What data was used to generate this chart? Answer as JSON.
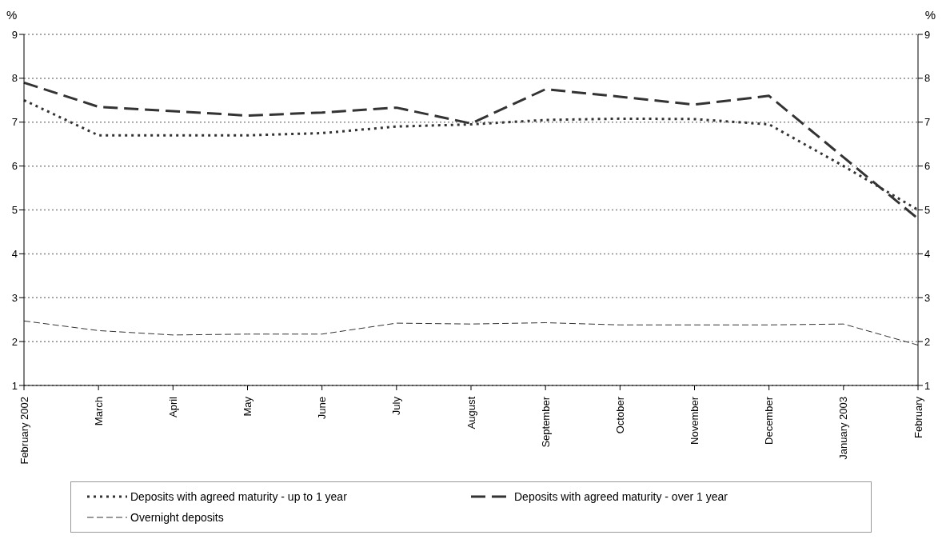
{
  "chart_data": {
    "type": "line",
    "ylabel": "%",
    "y2label": "%",
    "categories": [
      "February 2002",
      "March",
      "April",
      "May",
      "June",
      "July",
      "August",
      "September",
      "October",
      "November",
      "December",
      "January 2003",
      "February"
    ],
    "series": [
      {
        "name": "Deposits with agreed maturity - up to 1 year",
        "color": "#333333",
        "line_style": "dotted",
        "values": [
          7.5,
          6.7,
          6.7,
          6.7,
          6.75,
          6.9,
          6.95,
          7.05,
          7.08,
          7.07,
          6.95,
          6.0,
          5.0
        ]
      },
      {
        "name": "Deposits with agreed maturity - over 1 year",
        "color": "#333333",
        "line_style": "dashed",
        "values": [
          7.9,
          7.35,
          7.25,
          7.15,
          7.22,
          7.33,
          6.97,
          7.75,
          7.58,
          7.4,
          7.6,
          6.2,
          4.8
        ]
      },
      {
        "name": "Overnight deposits",
        "color": "#333333",
        "line_style": "dashed",
        "values": [
          2.47,
          2.25,
          2.15,
          2.17,
          2.17,
          2.42,
          2.4,
          2.43,
          2.38,
          2.38,
          2.38,
          2.4,
          1.92
        ]
      }
    ],
    "ylim": [
      1,
      9
    ],
    "yticks": [
      1,
      2,
      3,
      4,
      5,
      6,
      7,
      8,
      9
    ],
    "y2lim": [
      1,
      9
    ],
    "y2ticks": [
      1,
      2,
      3,
      4,
      5,
      6,
      7,
      8,
      9
    ],
    "grid": "y",
    "legend": "bottom",
    "marker": "none"
  }
}
